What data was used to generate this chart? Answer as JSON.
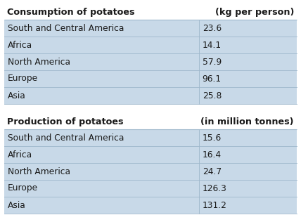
{
  "table1_title": "Consumption of potatoes",
  "table1_unit": "(kg per person)",
  "table1_rows": [
    [
      "South and Central America",
      "23.6"
    ],
    [
      "Africa",
      "14.1"
    ],
    [
      "North America",
      "57.9"
    ],
    [
      "Europe",
      "96.1"
    ],
    [
      "Asia",
      "25.8"
    ]
  ],
  "table2_title": "Production of potatoes",
  "table2_unit": "(in million tonnes)",
  "table2_rows": [
    [
      "South and Central America",
      "15.6"
    ],
    [
      "Africa",
      "16.4"
    ],
    [
      "North America",
      "24.7"
    ],
    [
      "Europe",
      "126.3"
    ],
    [
      "Asia",
      "131.2"
    ]
  ],
  "row_bg_color": "#c8d9e8",
  "border_color": "#9fb8cc",
  "title_font_size": 9.2,
  "cell_font_size": 8.8,
  "fig_bg_color": "#ffffff",
  "text_color": "#1a1a1a",
  "col1_ratio": 0.665
}
